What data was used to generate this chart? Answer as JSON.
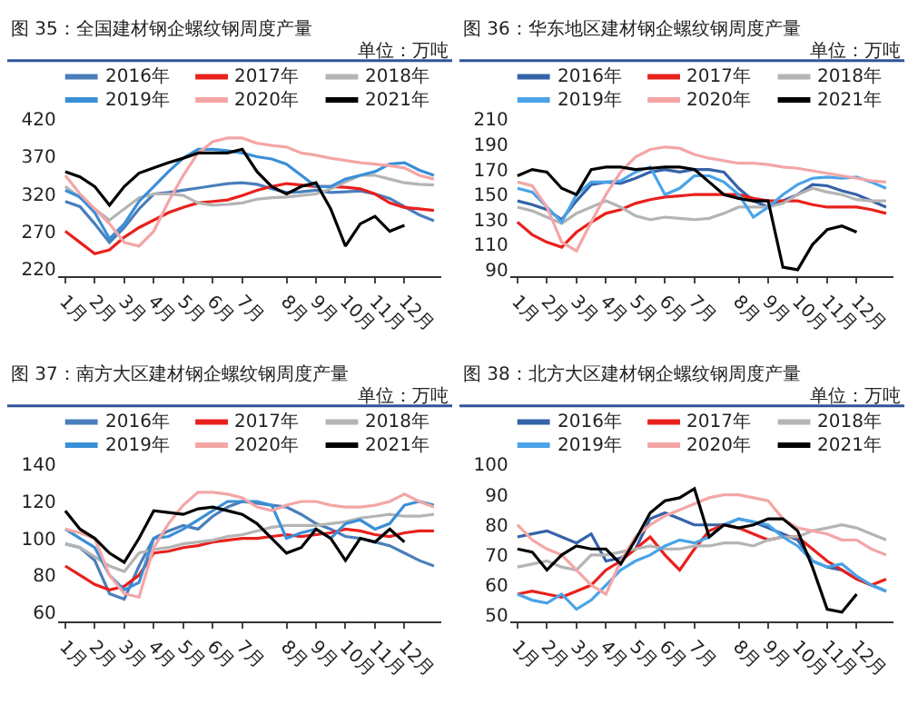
{
  "chart_data": [
    {
      "type": "line",
      "title": "图 35：全国建材钢企螺纹钢周度产量",
      "annotations": [
        "单位：万吨"
      ],
      "categories": [
        "1月",
        null,
        "2月",
        null,
        "3月",
        null,
        "4月",
        null,
        "5月",
        null,
        "6月",
        null,
        "7月",
        null,
        null,
        "8月",
        null,
        "9月",
        null,
        "10月",
        null,
        "11月",
        null,
        "12月",
        null,
        null
      ],
      "ylim": [
        210,
        420
      ],
      "yticks": [
        220,
        270,
        320,
        370,
        420
      ],
      "legend": "top",
      "series": [
        {
          "name": "2016年",
          "color": "#4a7ebb",
          "values": [
            310,
            303,
            280,
            255,
            275,
            300,
            320,
            322,
            325,
            328,
            331,
            334,
            335,
            333,
            327,
            322,
            323,
            325,
            322,
            323,
            324,
            320,
            314,
            303,
            292,
            284
          ]
        },
        {
          "name": "2017年",
          "color": "#e8211d",
          "values": [
            270,
            255,
            240,
            245,
            262,
            275,
            285,
            295,
            302,
            308,
            310,
            312,
            318,
            325,
            330,
            334,
            332,
            330,
            330,
            329,
            327,
            320,
            308,
            302,
            300,
            298
          ]
        },
        {
          "name": "2018年",
          "color": "#b4b4b4",
          "values": [
            330,
            315,
            300,
            285,
            300,
            315,
            320,
            320,
            318,
            308,
            305,
            306,
            308,
            313,
            315,
            316,
            318,
            320,
            327,
            336,
            345,
            345,
            340,
            335,
            333,
            332
          ]
        },
        {
          "name": "2019年",
          "color": "#3a8fd6",
          "values": [
            325,
            316,
            295,
            260,
            280,
            310,
            330,
            350,
            368,
            380,
            380,
            378,
            375,
            370,
            367,
            360,
            345,
            330,
            330,
            340,
            345,
            350,
            360,
            362,
            352,
            345
          ]
        },
        {
          "name": "2020年",
          "color": "#f4a6a6",
          "values": [
            345,
            320,
            300,
            280,
            255,
            250,
            270,
            310,
            345,
            375,
            390,
            395,
            395,
            388,
            385,
            383,
            375,
            372,
            368,
            365,
            362,
            360,
            358,
            355,
            345,
            340
          ]
        },
        {
          "name": "2021年",
          "color": "#000000",
          "values": [
            350,
            343,
            330,
            305,
            330,
            348,
            355,
            362,
            368,
            375,
            375,
            375,
            380,
            350,
            330,
            320,
            330,
            335,
            300,
            250,
            280,
            290,
            270,
            278,
            null,
            null
          ]
        }
      ]
    },
    {
      "type": "line",
      "title": "图 36：华东地区建材钢企螺纹钢周度产量",
      "annotations": [
        "单位：万吨"
      ],
      "categories": [
        "1月",
        null,
        "2月",
        null,
        "3月",
        null,
        "4月",
        null,
        "5月",
        null,
        "6月",
        null,
        "7月",
        null,
        null,
        "8月",
        null,
        "9月",
        null,
        "10月",
        null,
        "11月",
        null,
        "12月",
        null,
        null
      ],
      "ylim": [
        85,
        210
      ],
      "yticks": [
        90,
        110,
        130,
        150,
        170,
        190,
        210
      ],
      "legend": "top",
      "series": [
        {
          "name": "2016年",
          "color": "#3563a8",
          "values": [
            145,
            142,
            138,
            130,
            145,
            158,
            160,
            159,
            163,
            168,
            170,
            168,
            170,
            170,
            168,
            155,
            145,
            140,
            145,
            150,
            158,
            157,
            153,
            150,
            145,
            140
          ]
        },
        {
          "name": "2017年",
          "color": "#e8211d",
          "values": [
            128,
            118,
            112,
            108,
            120,
            128,
            135,
            138,
            143,
            146,
            148,
            149,
            150,
            150,
            150,
            150,
            147,
            145,
            145,
            145,
            142,
            140,
            140,
            140,
            138,
            135
          ]
        },
        {
          "name": "2018年",
          "color": "#b4b4b4",
          "values": [
            140,
            137,
            132,
            127,
            135,
            140,
            145,
            140,
            133,
            130,
            132,
            131,
            130,
            131,
            135,
            140,
            140,
            140,
            143,
            150,
            155,
            152,
            150,
            146,
            145,
            145
          ]
        },
        {
          "name": "2019年",
          "color": "#4aa3e8",
          "values": [
            155,
            152,
            140,
            128,
            150,
            160,
            160,
            161,
            168,
            172,
            150,
            155,
            165,
            165,
            160,
            150,
            132,
            140,
            150,
            158,
            163,
            164,
            163,
            164,
            160,
            155
          ]
        },
        {
          "name": "2020年",
          "color": "#f4a6a6",
          "values": [
            160,
            157,
            140,
            112,
            105,
            128,
            150,
            168,
            180,
            186,
            188,
            187,
            182,
            179,
            177,
            175,
            175,
            174,
            172,
            171,
            169,
            167,
            165,
            163,
            161,
            160
          ]
        },
        {
          "name": "2021年",
          "color": "#000000",
          "values": [
            165,
            170,
            168,
            155,
            150,
            170,
            172,
            172,
            170,
            171,
            172,
            172,
            170,
            160,
            150,
            147,
            145,
            145,
            92,
            90,
            110,
            122,
            125,
            120,
            null,
            null
          ]
        }
      ]
    },
    {
      "type": "line",
      "title": "图 37：南方大区建材钢企螺纹钢周度产量",
      "annotations": [
        "单位：万吨"
      ],
      "categories": [
        "1月",
        null,
        "2月",
        null,
        "3月",
        null,
        "4月",
        null,
        "5月",
        null,
        "6月",
        null,
        "7月",
        null,
        null,
        "8月",
        null,
        "9月",
        null,
        "10月",
        null,
        "11月",
        null,
        "12月",
        null,
        null
      ],
      "ylim": [
        55,
        140
      ],
      "yticks": [
        60,
        80,
        100,
        120,
        140
      ],
      "legend": "top",
      "series": [
        {
          "name": "2016年",
          "color": "#4a7ebb",
          "values": [
            97,
            95,
            88,
            70,
            67,
            85,
            100,
            104,
            107,
            105,
            112,
            117,
            120,
            119,
            118,
            117,
            113,
            108,
            105,
            101,
            100,
            98,
            96,
            92,
            88,
            85
          ]
        },
        {
          "name": "2017年",
          "color": "#e8211d",
          "values": [
            85,
            80,
            75,
            72,
            74,
            80,
            92,
            93,
            95,
            96,
            98,
            99,
            100,
            100,
            101,
            102,
            101,
            102,
            103,
            105,
            104,
            102,
            101,
            103,
            104,
            104
          ]
        },
        {
          "name": "2018年",
          "color": "#b4b4b4",
          "values": [
            97,
            95,
            90,
            85,
            82,
            92,
            94,
            95,
            97,
            98,
            99,
            101,
            102,
            104,
            106,
            107,
            107,
            107,
            108,
            109,
            111,
            112,
            113,
            112,
            112,
            113
          ]
        },
        {
          "name": "2019年",
          "color": "#3a8fd6",
          "values": [
            105,
            100,
            95,
            80,
            72,
            76,
            100,
            101,
            105,
            110,
            115,
            120,
            120,
            120,
            118,
            100,
            103,
            105,
            100,
            108,
            110,
            105,
            108,
            118,
            120,
            118
          ]
        },
        {
          "name": "2020年",
          "color": "#f4a6a6",
          "values": [
            105,
            103,
            100,
            80,
            70,
            68,
            95,
            108,
            118,
            125,
            125,
            124,
            122,
            117,
            115,
            118,
            120,
            120,
            118,
            117,
            117,
            118,
            120,
            124,
            120,
            117
          ]
        },
        {
          "name": "2021年",
          "color": "#000000",
          "values": [
            115,
            105,
            100,
            92,
            87,
            100,
            115,
            114,
            113,
            116,
            117,
            115,
            113,
            108,
            100,
            92,
            95,
            105,
            100,
            88,
            100,
            98,
            105,
            98,
            null,
            null
          ]
        }
      ]
    },
    {
      "type": "line",
      "title": "图 38：北方大区建材钢企螺纹钢周度产量",
      "annotations": [
        "单位：万吨"
      ],
      "categories": [
        "1月",
        null,
        "2月",
        null,
        "3月",
        null,
        "4月",
        null,
        "5月",
        null,
        "6月",
        null,
        "7月",
        null,
        null,
        "8月",
        null,
        "9月",
        null,
        "10月",
        null,
        "11月",
        null,
        "12月",
        null,
        null
      ],
      "ylim": [
        48,
        100
      ],
      "yticks": [
        50,
        60,
        70,
        80,
        90,
        100
      ],
      "legend": "top",
      "series": [
        {
          "name": "2016年",
          "color": "#3563a8",
          "values": [
            76,
            77,
            78,
            76,
            74,
            77,
            68,
            69,
            72,
            82,
            84,
            82,
            80,
            80,
            80,
            82,
            81,
            79,
            77,
            75,
            68,
            66,
            65,
            62,
            60,
            58
          ]
        },
        {
          "name": "2017年",
          "color": "#e8211d",
          "values": [
            57,
            58,
            57,
            56,
            58,
            60,
            65,
            68,
            72,
            76,
            70,
            65,
            72,
            78,
            80,
            79,
            77,
            75,
            76,
            76,
            72,
            68,
            65,
            62,
            60,
            62
          ]
        },
        {
          "name": "2018年",
          "color": "#b4b4b4",
          "values": [
            66,
            67,
            68,
            66,
            65,
            70,
            70,
            71,
            72,
            73,
            72,
            72,
            73,
            73,
            74,
            74,
            73,
            75,
            76,
            76,
            78,
            79,
            80,
            79,
            77,
            75
          ]
        },
        {
          "name": "2019年",
          "color": "#4aa3e8",
          "values": [
            57,
            55,
            54,
            57,
            52,
            55,
            60,
            65,
            68,
            70,
            73,
            75,
            74,
            76,
            80,
            82,
            81,
            80,
            76,
            73,
            68,
            66,
            67,
            63,
            60,
            58
          ]
        },
        {
          "name": "2020年",
          "color": "#f4a6a6",
          "values": [
            80,
            75,
            72,
            70,
            65,
            60,
            57,
            68,
            76,
            80,
            83,
            85,
            87,
            89,
            90,
            90,
            89,
            88,
            82,
            79,
            78,
            77,
            75,
            75,
            72,
            70
          ]
        },
        {
          "name": "2021年",
          "color": "#000000",
          "values": [
            72,
            71,
            65,
            70,
            73,
            72,
            72,
            67,
            75,
            84,
            88,
            89,
            92,
            76,
            80,
            79,
            80,
            82,
            82,
            78,
            66,
            52,
            51,
            57,
            null,
            null
          ]
        }
      ]
    }
  ]
}
